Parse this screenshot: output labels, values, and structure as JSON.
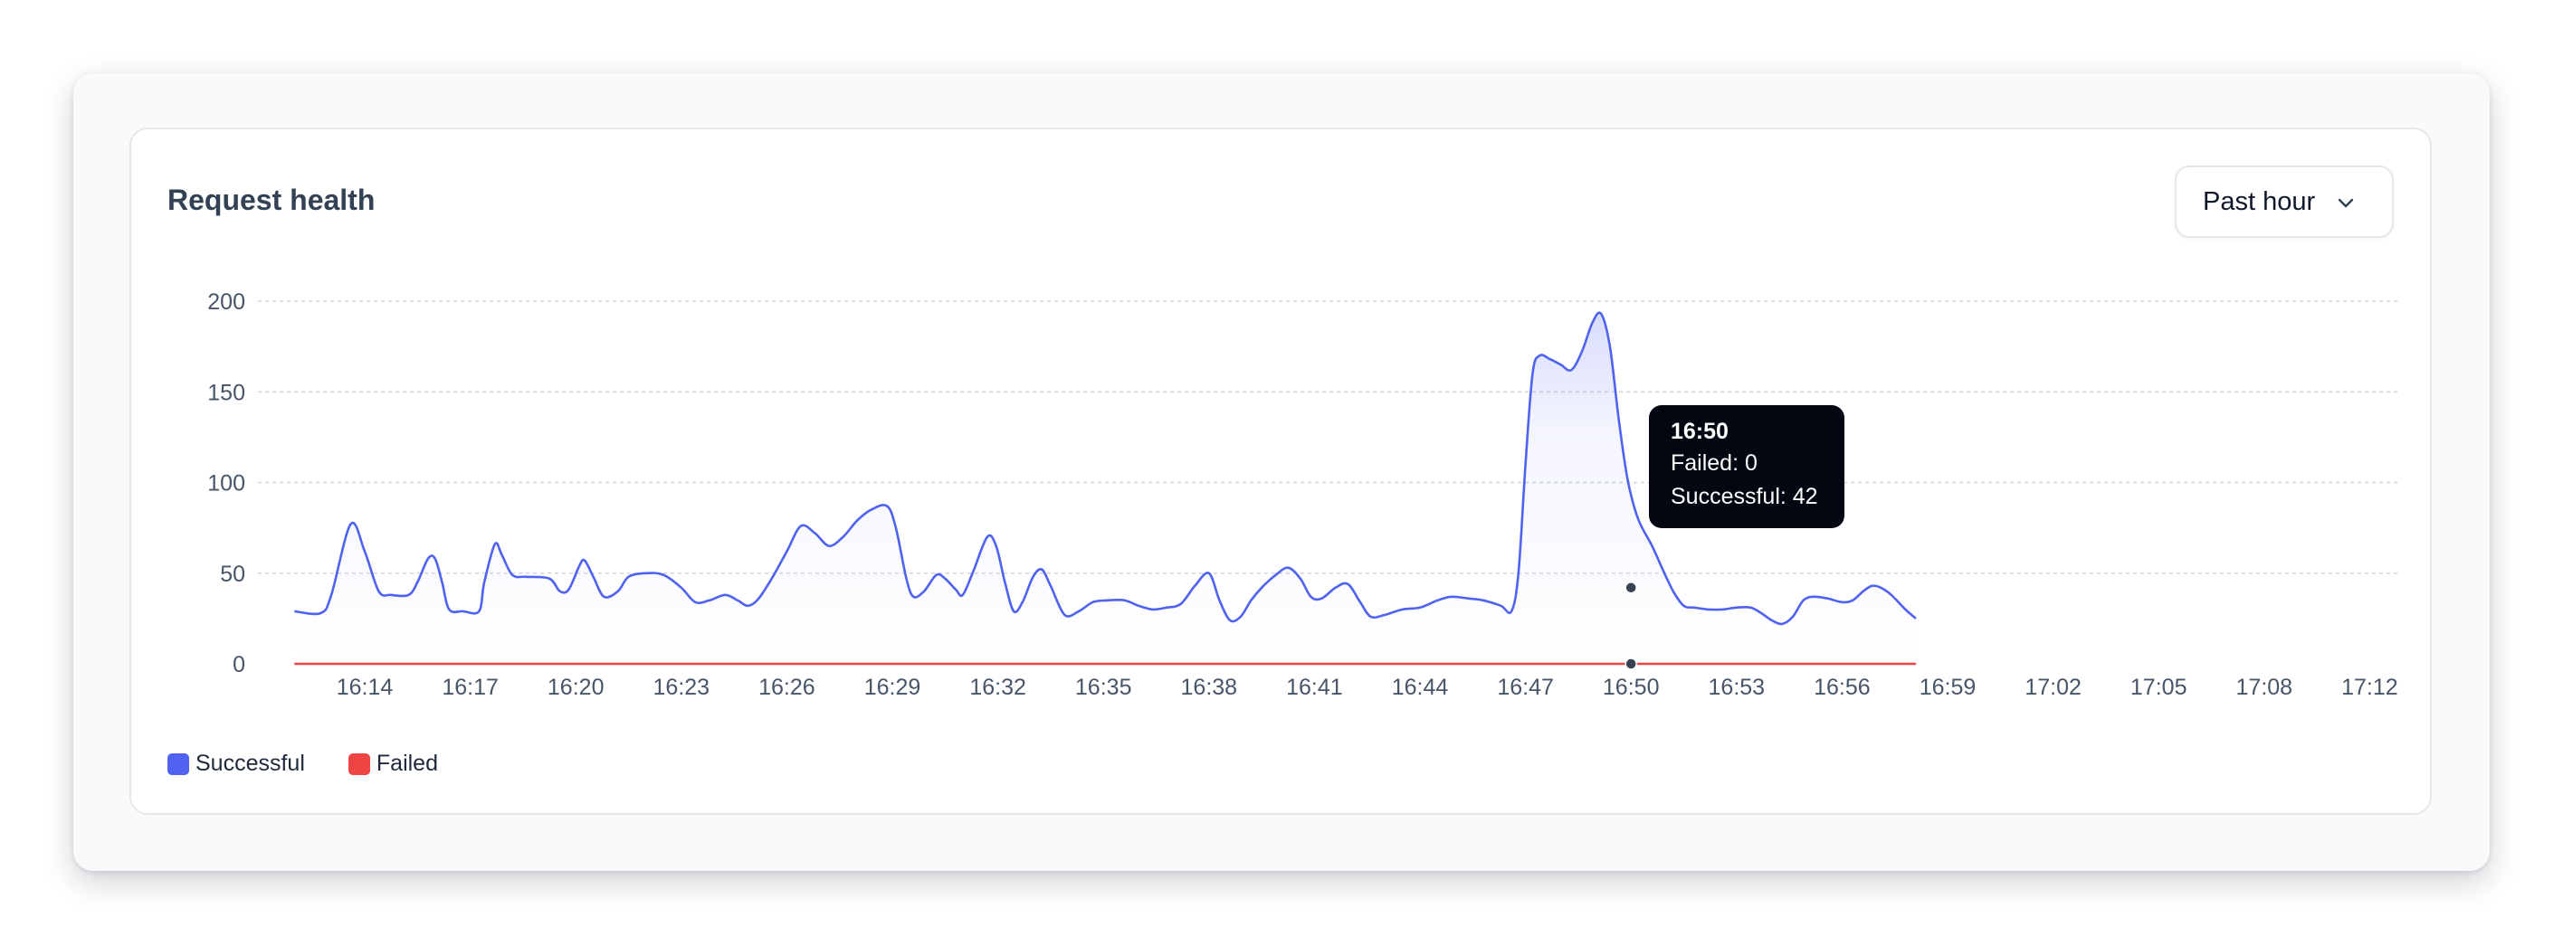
{
  "card": {
    "title": "Request health",
    "range_selector": {
      "selected": "Past hour",
      "icon": "chevron-down-icon"
    }
  },
  "tooltip": {
    "time": "16:50",
    "failed_text": "Failed: 0",
    "successful_text": "Successful: 42"
  },
  "colors": {
    "successful": "#4f63f0",
    "failed": "#ef4444"
  },
  "chart_data": {
    "type": "area",
    "xlabel": "",
    "ylabel": "",
    "ylim": [
      0,
      200
    ],
    "yticks": [
      0,
      50,
      100,
      150,
      200
    ],
    "grid": true,
    "legend_position": "bottom-left",
    "x_start": "16:14",
    "x_end": "17:12",
    "x_tick_labels": [
      "16:14",
      "16:17",
      "16:20",
      "16:23",
      "16:26",
      "16:29",
      "16:32",
      "16:35",
      "16:38",
      "16:41",
      "16:44",
      "16:47",
      "16:50",
      "16:53",
      "16:56",
      "16:59",
      "17:02",
      "17:05",
      "17:08",
      "17:12"
    ],
    "series": [
      {
        "name": "Successful",
        "color": "#4f63f0",
        "points": [
          [
            -2.0,
            29
          ],
          [
            -1.25,
            28
          ],
          [
            -0.95,
            38
          ],
          [
            -0.4,
            77
          ],
          [
            0.0,
            62
          ],
          [
            0.4,
            40
          ],
          [
            0.75,
            38
          ],
          [
            1.25,
            38
          ],
          [
            1.5,
            45
          ],
          [
            1.8,
            58
          ],
          [
            2.0,
            58
          ],
          [
            2.2,
            45
          ],
          [
            2.4,
            30
          ],
          [
            2.8,
            29
          ],
          [
            3.25,
            29
          ],
          [
            3.4,
            45
          ],
          [
            3.7,
            66
          ],
          [
            3.9,
            60
          ],
          [
            4.2,
            49
          ],
          [
            4.6,
            48
          ],
          [
            5.25,
            47
          ],
          [
            5.55,
            40
          ],
          [
            5.8,
            41
          ],
          [
            6.1,
            54
          ],
          [
            6.25,
            57
          ],
          [
            6.5,
            48
          ],
          [
            6.8,
            37
          ],
          [
            7.2,
            40
          ],
          [
            7.5,
            48
          ],
          [
            8.0,
            50
          ],
          [
            8.5,
            49
          ],
          [
            9.0,
            42
          ],
          [
            9.4,
            34
          ],
          [
            9.8,
            35
          ],
          [
            10.25,
            38
          ],
          [
            10.6,
            35
          ],
          [
            10.9,
            32
          ],
          [
            11.2,
            36
          ],
          [
            11.6,
            48
          ],
          [
            12.0,
            62
          ],
          [
            12.4,
            76
          ],
          [
            12.8,
            72
          ],
          [
            13.2,
            65
          ],
          [
            13.6,
            70
          ],
          [
            14.0,
            79
          ],
          [
            14.4,
            85
          ],
          [
            14.85,
            87
          ],
          [
            15.1,
            75
          ],
          [
            15.4,
            47
          ],
          [
            15.6,
            37
          ],
          [
            15.9,
            40
          ],
          [
            16.25,
            49
          ],
          [
            16.5,
            47
          ],
          [
            16.8,
            41
          ],
          [
            17.0,
            38
          ],
          [
            17.3,
            51
          ],
          [
            17.7,
            70
          ],
          [
            17.95,
            65
          ],
          [
            18.2,
            45
          ],
          [
            18.45,
            29
          ],
          [
            18.7,
            34
          ],
          [
            19.0,
            48
          ],
          [
            19.25,
            52
          ],
          [
            19.5,
            43
          ],
          [
            19.9,
            27
          ],
          [
            20.3,
            29
          ],
          [
            20.7,
            34
          ],
          [
            21.1,
            35
          ],
          [
            21.6,
            35
          ],
          [
            22.0,
            32
          ],
          [
            22.4,
            30
          ],
          [
            22.8,
            31
          ],
          [
            23.2,
            33
          ],
          [
            23.6,
            43
          ],
          [
            24.0,
            50
          ],
          [
            24.3,
            35
          ],
          [
            24.6,
            24
          ],
          [
            24.9,
            26
          ],
          [
            25.2,
            35
          ],
          [
            25.5,
            42
          ],
          [
            25.9,
            49
          ],
          [
            26.25,
            53
          ],
          [
            26.6,
            47
          ],
          [
            26.9,
            37
          ],
          [
            27.2,
            36
          ],
          [
            27.6,
            42
          ],
          [
            27.95,
            44
          ],
          [
            28.3,
            34
          ],
          [
            28.6,
            26
          ],
          [
            29.0,
            27
          ],
          [
            29.5,
            30
          ],
          [
            30.0,
            31
          ],
          [
            30.5,
            35
          ],
          [
            30.9,
            37
          ],
          [
            31.4,
            36
          ],
          [
            31.8,
            35
          ],
          [
            32.3,
            32
          ],
          [
            32.6,
            29
          ],
          [
            32.8,
            50
          ],
          [
            33.0,
            110
          ],
          [
            33.2,
            160
          ],
          [
            33.4,
            170
          ],
          [
            33.7,
            168
          ],
          [
            34.0,
            165
          ],
          [
            34.3,
            162
          ],
          [
            34.6,
            172
          ],
          [
            34.9,
            188
          ],
          [
            35.15,
            193
          ],
          [
            35.4,
            175
          ],
          [
            35.65,
            135
          ],
          [
            35.9,
            102
          ],
          [
            36.2,
            80
          ],
          [
            36.6,
            65
          ],
          [
            36.9,
            52
          ],
          [
            37.2,
            40
          ],
          [
            37.5,
            32
          ],
          [
            37.8,
            31
          ],
          [
            38.2,
            30
          ],
          [
            38.6,
            30
          ],
          [
            39.0,
            31
          ],
          [
            39.4,
            31
          ],
          [
            39.7,
            28
          ],
          [
            40.0,
            24
          ],
          [
            40.3,
            22
          ],
          [
            40.6,
            26
          ],
          [
            40.9,
            35
          ],
          [
            41.2,
            37
          ],
          [
            41.6,
            36
          ],
          [
            42.0,
            34
          ],
          [
            42.3,
            35
          ],
          [
            42.6,
            40
          ],
          [
            42.85,
            43
          ],
          [
            43.1,
            42
          ],
          [
            43.4,
            38
          ],
          [
            43.8,
            30
          ],
          [
            44.1,
            25
          ]
        ]
      },
      {
        "name": "Failed",
        "color": "#ef4444",
        "points": [
          [
            -2.0,
            0
          ],
          [
            44.1,
            0
          ]
        ]
      }
    ]
  }
}
